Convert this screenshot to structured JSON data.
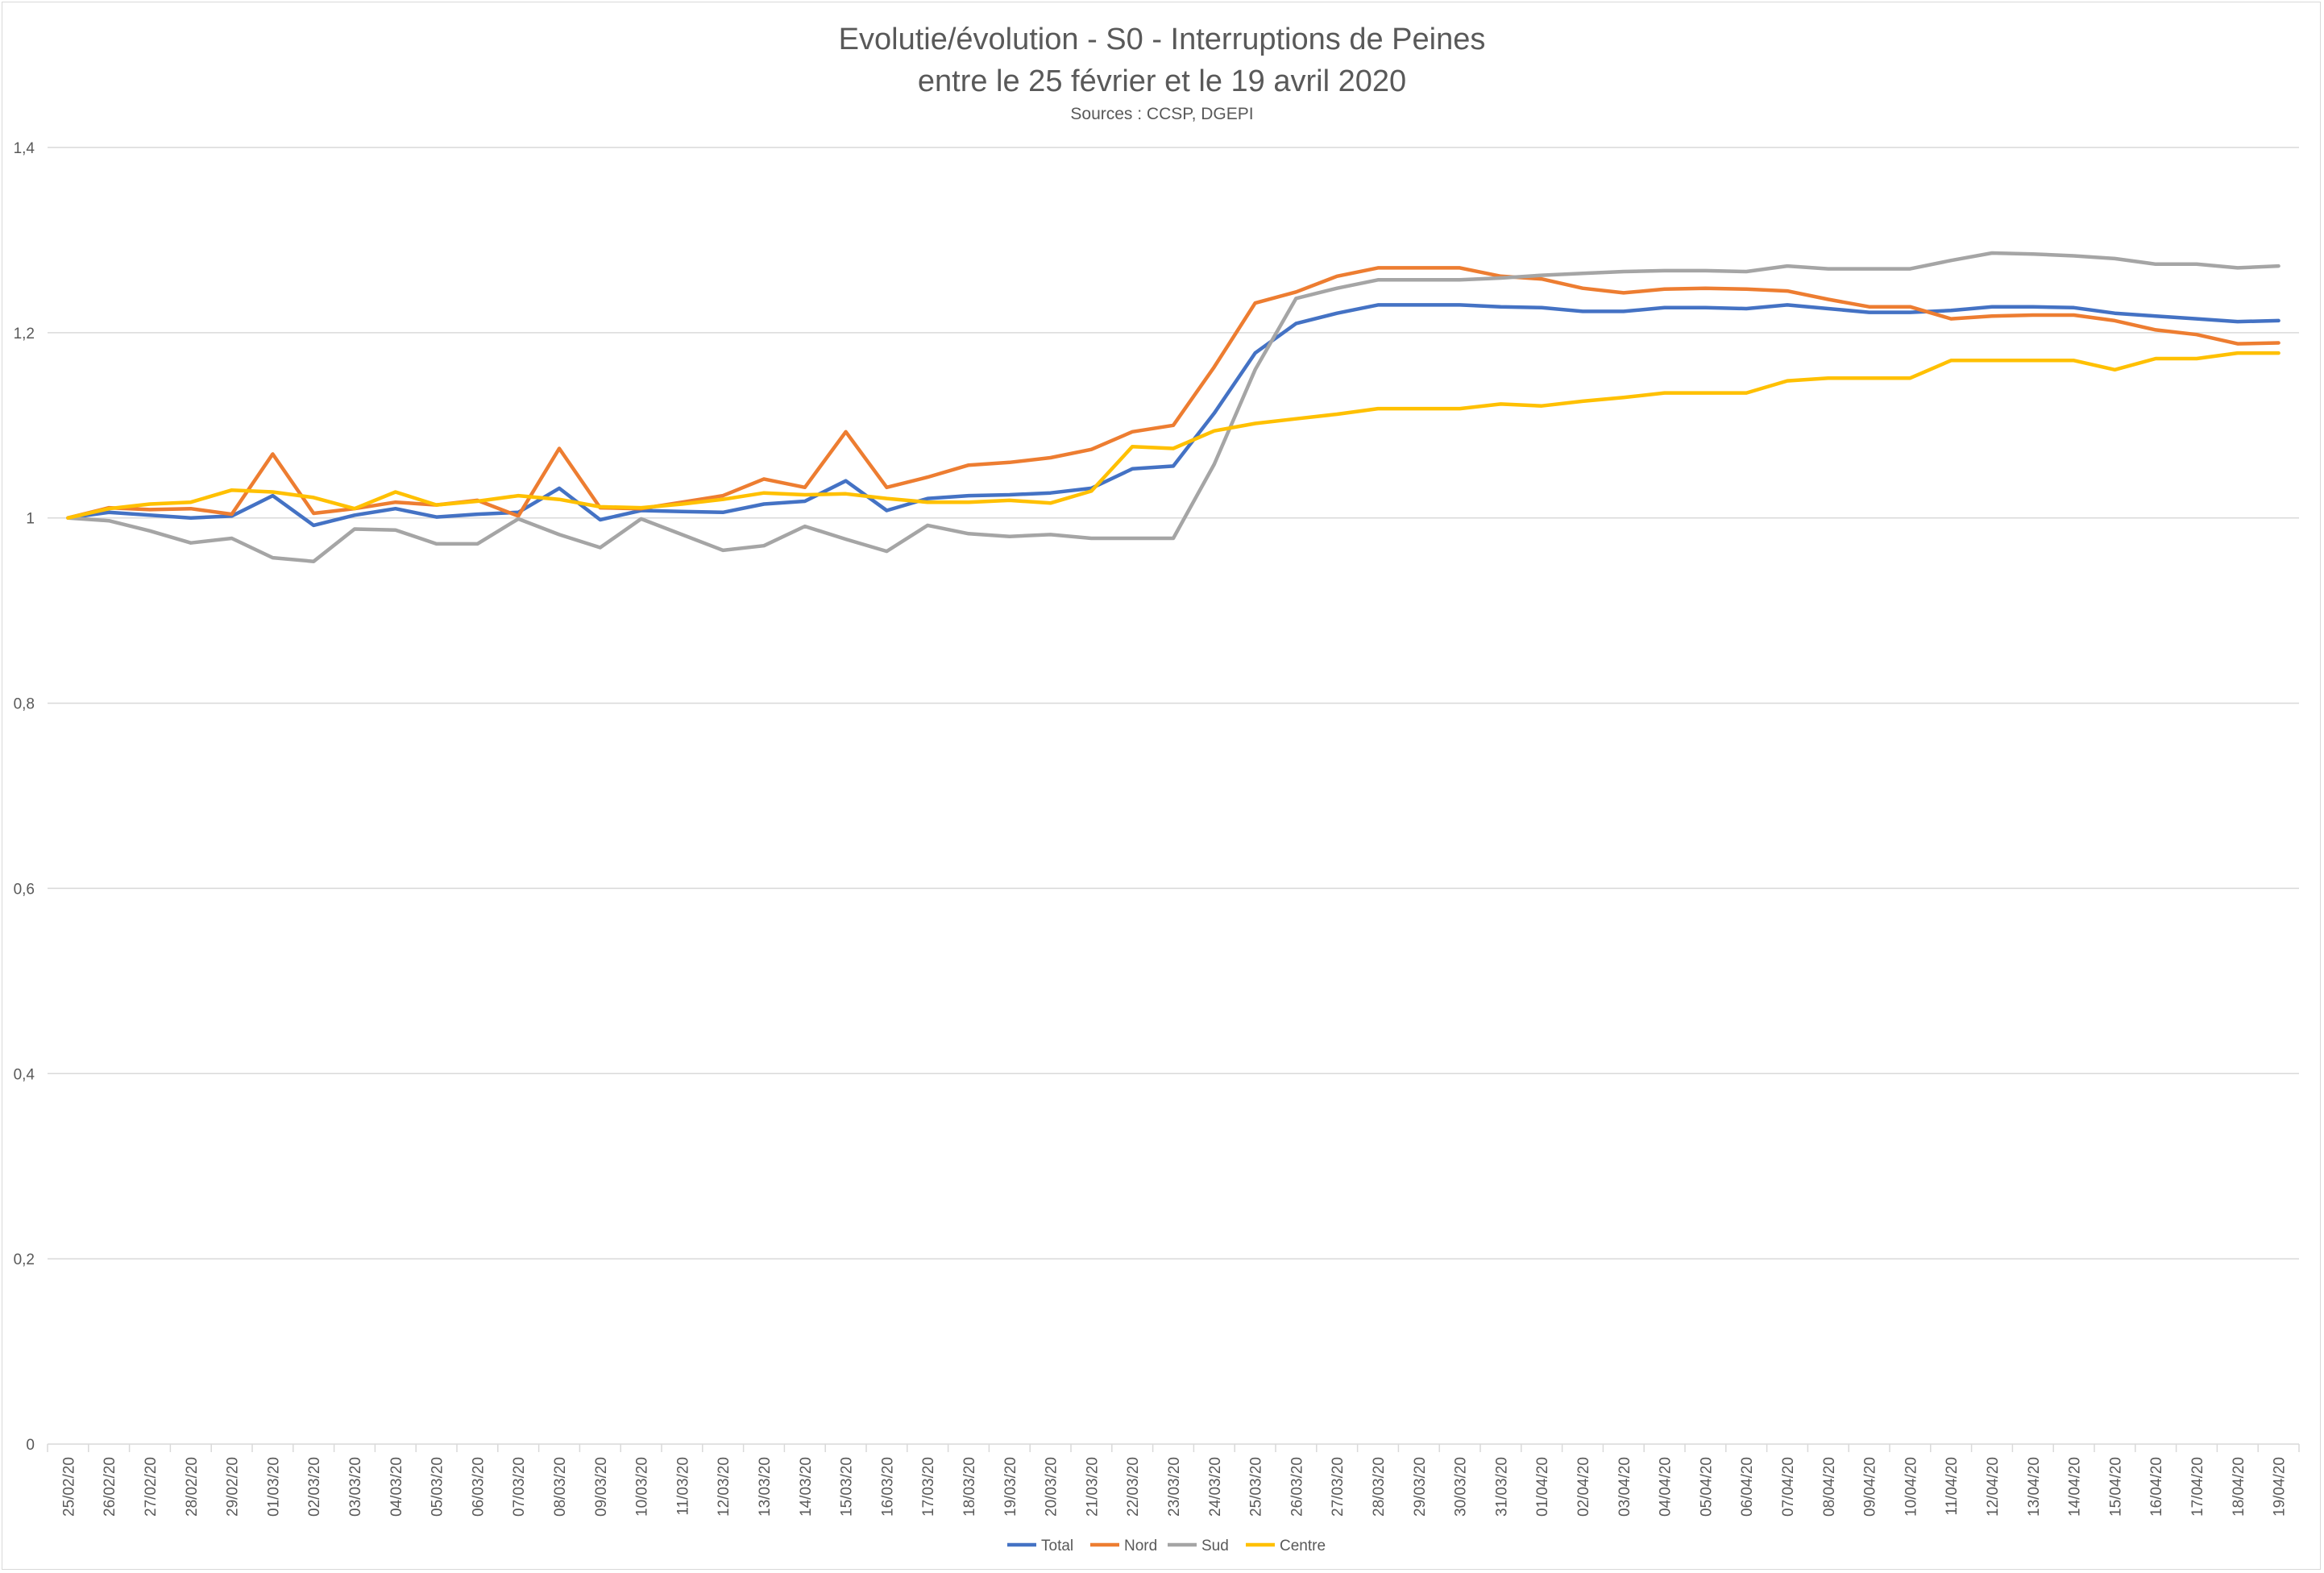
{
  "chart_data": {
    "type": "line",
    "title": "Evolutie/évolution - S0 - Interruptions de Peines",
    "subtitle": "entre le 25 février et le 19 avril 2020",
    "source": "Sources : CCSP, DGEPI",
    "xlabel": "",
    "ylabel": "",
    "ylim": [
      0,
      1.4
    ],
    "yticks": [
      "0",
      "0,2",
      "0,4",
      "0,6",
      "0,8",
      "1",
      "1,2",
      "1,4"
    ],
    "ytick_values": [
      0,
      0.2,
      0.4,
      0.6,
      0.8,
      1,
      1.2,
      1.4
    ],
    "grid": true,
    "legend_position": "bottom",
    "categories": [
      "25/02/20",
      "26/02/20",
      "27/02/20",
      "28/02/20",
      "29/02/20",
      "01/03/20",
      "02/03/20",
      "03/03/20",
      "04/03/20",
      "05/03/20",
      "06/03/20",
      "07/03/20",
      "08/03/20",
      "09/03/20",
      "10/03/20",
      "11/03/20",
      "12/03/20",
      "13/03/20",
      "14/03/20",
      "15/03/20",
      "16/03/20",
      "17/03/20",
      "18/03/20",
      "19/03/20",
      "20/03/20",
      "21/03/20",
      "22/03/20",
      "23/03/20",
      "24/03/20",
      "25/03/20",
      "26/03/20",
      "27/03/20",
      "28/03/20",
      "29/03/20",
      "30/03/20",
      "31/03/20",
      "01/04/20",
      "02/04/20",
      "03/04/20",
      "04/04/20",
      "05/04/20",
      "06/04/20",
      "07/04/20",
      "08/04/20",
      "09/04/20",
      "10/04/20",
      "11/04/20",
      "12/04/20",
      "13/04/20",
      "14/04/20",
      "15/04/20",
      "16/04/20",
      "17/04/20",
      "18/04/20",
      "19/04/20"
    ],
    "series": [
      {
        "name": "Total",
        "color": "#4472c4",
        "values": [
          1.0,
          1.006,
          1.003,
          1.0,
          1.002,
          1.024,
          0.992,
          1.003,
          1.01,
          1.001,
          1.004,
          1.006,
          1.032,
          0.998,
          1.008,
          1.007,
          1.006,
          1.015,
          1.018,
          1.04,
          1.008,
          1.021,
          1.024,
          1.025,
          1.027,
          1.032,
          1.053,
          1.056,
          1.113,
          1.178,
          1.21,
          1.221,
          1.23,
          1.23,
          1.23,
          1.228,
          1.227,
          1.223,
          1.223,
          1.227,
          1.227,
          1.226,
          1.23,
          1.226,
          1.222,
          1.222,
          1.224,
          1.228,
          1.228,
          1.227,
          1.221,
          1.218,
          1.215,
          1.212,
          1.213
        ]
      },
      {
        "name": "Nord",
        "color": "#ed7d31",
        "values": [
          1.0,
          1.011,
          1.009,
          1.01,
          1.004,
          1.069,
          1.005,
          1.01,
          1.017,
          1.014,
          1.019,
          1.002,
          1.075,
          1.011,
          1.01,
          1.017,
          1.024,
          1.042,
          1.033,
          1.093,
          1.033,
          1.044,
          1.057,
          1.06,
          1.065,
          1.074,
          1.093,
          1.1,
          1.163,
          1.232,
          1.244,
          1.261,
          1.27,
          1.27,
          1.27,
          1.261,
          1.258,
          1.248,
          1.243,
          1.247,
          1.248,
          1.247,
          1.245,
          1.236,
          1.228,
          1.228,
          1.215,
          1.218,
          1.219,
          1.219,
          1.213,
          1.203,
          1.198,
          1.188,
          1.189
        ]
      },
      {
        "name": "Sud",
        "color": "#a5a5a5",
        "values": [
          1.0,
          0.997,
          0.986,
          0.973,
          0.978,
          0.957,
          0.953,
          0.988,
          0.987,
          0.972,
          0.972,
          0.999,
          0.982,
          0.968,
          0.999,
          0.982,
          0.965,
          0.97,
          0.991,
          0.977,
          0.964,
          0.992,
          0.983,
          0.98,
          0.982,
          0.978,
          0.978,
          0.978,
          1.058,
          1.16,
          1.237,
          1.248,
          1.257,
          1.257,
          1.257,
          1.259,
          1.262,
          1.264,
          1.266,
          1.267,
          1.267,
          1.266,
          1.272,
          1.269,
          1.269,
          1.269,
          1.278,
          1.286,
          1.285,
          1.283,
          1.28,
          1.274,
          1.274,
          1.27,
          1.272
        ]
      },
      {
        "name": "Centre",
        "color": "#ffc000",
        "values": [
          1.0,
          1.01,
          1.015,
          1.017,
          1.03,
          1.028,
          1.022,
          1.01,
          1.028,
          1.014,
          1.018,
          1.024,
          1.02,
          1.012,
          1.011,
          1.015,
          1.02,
          1.027,
          1.025,
          1.026,
          1.021,
          1.017,
          1.017,
          1.019,
          1.016,
          1.029,
          1.077,
          1.075,
          1.094,
          1.102,
          1.107,
          1.112,
          1.118,
          1.118,
          1.118,
          1.123,
          1.121,
          1.126,
          1.13,
          1.135,
          1.135,
          1.135,
          1.148,
          1.151,
          1.151,
          1.151,
          1.17,
          1.17,
          1.17,
          1.17,
          1.16,
          1.172,
          1.172,
          1.178,
          1.178
        ]
      }
    ]
  }
}
